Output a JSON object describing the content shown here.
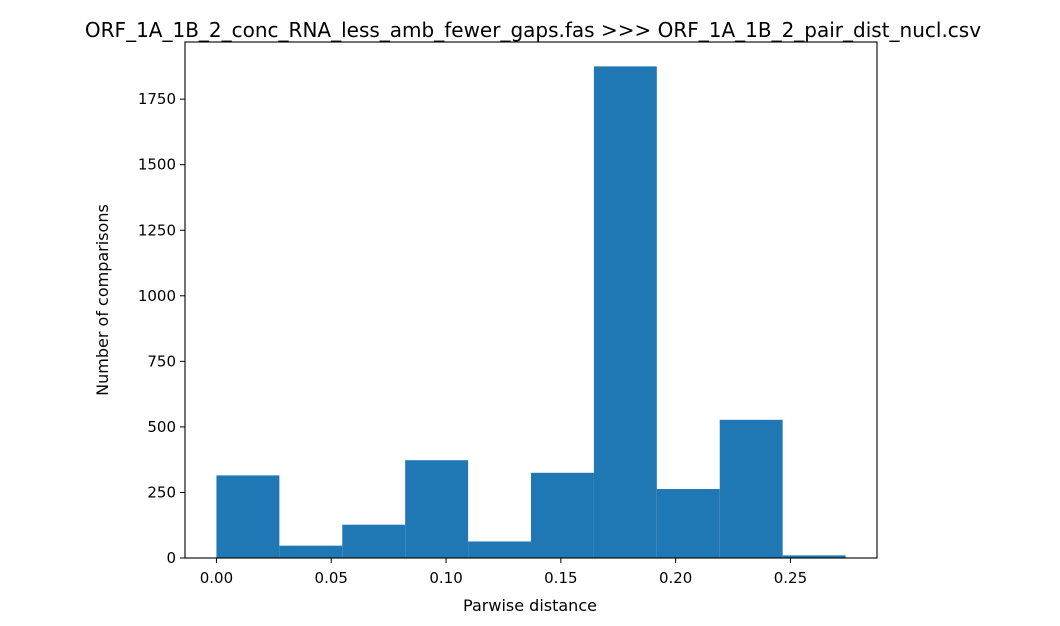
{
  "chart_data": {
    "type": "bar",
    "title": "ORF_1A_1B_2_conc_RNA_less_amb_fewer_gaps.fas >>> ORF_1A_1B_2_pair_dist_nucl.csv",
    "xlabel": "Parwise distance",
    "ylabel": "Number of comparisons",
    "xlim": [
      -0.0137,
      0.2877
    ],
    "ylim": [
      0,
      1968
    ],
    "x_ticks": [
      0.0,
      0.05,
      0.1,
      0.15,
      0.2,
      0.25
    ],
    "x_tick_labels": [
      "0.00",
      "0.05",
      "0.10",
      "0.15",
      "0.20",
      "0.25"
    ],
    "y_ticks": [
      0,
      250,
      500,
      750,
      1000,
      1250,
      1500,
      1750
    ],
    "y_tick_labels": [
      "0",
      "250",
      "500",
      "750",
      "1000",
      "1250",
      "1500",
      "1750"
    ],
    "bin_edges": [
      0.0,
      0.0274,
      0.0548,
      0.0822,
      0.1096,
      0.137,
      0.1644,
      0.1918,
      0.2192,
      0.2466,
      0.274
    ],
    "values": [
      315,
      47,
      127,
      373,
      63,
      325,
      1875,
      263,
      527,
      10
    ],
    "bar_color": "#1f77b4",
    "grid": false,
    "legend": false
  }
}
